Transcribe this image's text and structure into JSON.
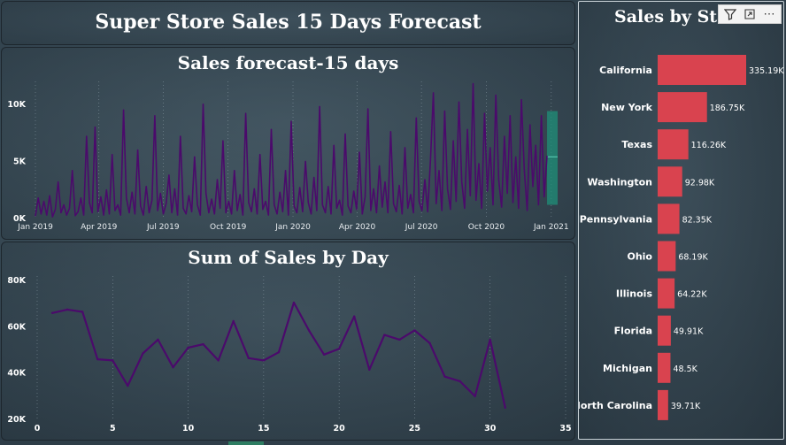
{
  "dashboard": {
    "title": "Super Store Sales 15 Days Forecast"
  },
  "colors": {
    "line": "#4b0a6b",
    "forecast_band": "#1f8f78",
    "bar": "#d9434f"
  },
  "toolbar": {
    "icons": [
      "filter-icon",
      "focus-mode-icon",
      "more-options-icon"
    ],
    "more_label": "⋯"
  },
  "chart_data": [
    {
      "type": "line",
      "title": "Sales forecast-15 days",
      "x_ticks": [
        "Jan 2019",
        "Apr 2019",
        "Jul 2019",
        "Oct 2019",
        "Jan 2020",
        "Apr 2020",
        "Jul 2020",
        "Oct 2020",
        "Jan 2021"
      ],
      "y_ticks": [
        "0K",
        "5K",
        "10K"
      ],
      "ylim": [
        0,
        12000
      ],
      "x_range": [
        "2019-01-01",
        "2021-01-10"
      ],
      "series": [
        {
          "values": [
            200,
            1800,
            400,
            1500,
            300,
            2000,
            150,
            800,
            3200,
            500,
            1200,
            300,
            900,
            4200,
            250,
            600,
            1800,
            300,
            7200,
            1400,
            500,
            8000,
            600,
            1900,
            300,
            2500,
            400,
            5600,
            700,
            1200,
            300,
            9500,
            1800,
            500,
            2300,
            400,
            6000,
            1100,
            300,
            2800,
            500,
            1600,
            9000,
            700,
            2200,
            400,
            1300,
            3800,
            500,
            2600,
            300,
            7200,
            900,
            400,
            2000,
            600,
            5400,
            1200,
            300,
            10000,
            2200,
            500,
            1700,
            400,
            3400,
            900,
            6800,
            500,
            1500,
            400,
            4200,
            700,
            2100,
            300,
            9200,
            1400,
            600,
            2600,
            400,
            5600,
            800,
            1500,
            300,
            7800,
            1200,
            400,
            2300,
            600,
            4200,
            300,
            8500,
            1100,
            500,
            2700,
            600,
            5000,
            1400,
            400,
            3600,
            700,
            9800,
            1200,
            500,
            2800,
            400,
            6400,
            900,
            1600,
            300,
            7400,
            1100,
            500,
            2400,
            800,
            5800,
            400,
            1900,
            9600,
            700,
            2600,
            500,
            4600,
            1000,
            3200,
            500,
            7600,
            1300,
            600,
            2900,
            400,
            6200,
            900,
            2100,
            500,
            8800,
            1500,
            700,
            3400,
            600,
            5200,
            11000,
            1300,
            4200,
            700,
            9400,
            2600,
            800,
            6800,
            1500,
            10200,
            3200,
            900,
            7800,
            2000,
            11800,
            1600,
            4800,
            900,
            9200,
            2400,
            6200,
            1200,
            10800,
            3400,
            1000,
            7200,
            2200,
            9000,
            1400,
            5400,
            900,
            10400,
            4300,
            700,
            8200,
            2800,
            6400,
            1200,
            9000,
            1900,
            5500
          ]
        },
        {
          "name": "",
          "values": []
        }
      ],
      "forecast_band": {
        "start": "2020-12-26",
        "end": "2021-01-10",
        "lower": 1200,
        "upper": 9400,
        "mid": 5400
      }
    },
    {
      "type": "line",
      "title": "Sum of Sales by Day",
      "x": [
        1,
        2,
        3,
        4,
        5,
        6,
        7,
        8,
        9,
        10,
        11,
        12,
        13,
        14,
        15,
        16,
        17,
        18,
        19,
        20,
        21,
        22,
        23,
        24,
        25,
        26,
        27,
        28,
        29,
        30,
        31
      ],
      "values": [
        66000,
        67500,
        66500,
        46000,
        45500,
        34500,
        48500,
        54500,
        42500,
        51000,
        52500,
        45500,
        62500,
        46500,
        45500,
        49000,
        70500,
        58500,
        48000,
        50500,
        64500,
        41500,
        56500,
        54500,
        58500,
        53000,
        38500,
        36500,
        30000,
        54500,
        25000
      ],
      "x_ticks": [
        "0",
        "5",
        "10",
        "15",
        "20",
        "25",
        "30",
        "35"
      ],
      "xlim": [
        0,
        35
      ],
      "y_ticks": [
        "20K",
        "40K",
        "60K",
        "80K"
      ],
      "ylim": [
        20000,
        82000
      ]
    },
    {
      "type": "bar",
      "title": "Sales by State",
      "categories": [
        "California",
        "New York",
        "Texas",
        "Washington",
        "Pennsylvania",
        "Ohio",
        "Illinois",
        "Florida",
        "Michigan",
        "North Carolina"
      ],
      "values": [
        335190,
        186750,
        116260,
        92980,
        82350,
        68190,
        64220,
        49910,
        48500,
        39710
      ],
      "labels": [
        "335.19K",
        "186.75K",
        "116.26K",
        "92.98K",
        "82.35K",
        "68.19K",
        "64.22K",
        "49.91K",
        "48.5K",
        "39.71K"
      ]
    }
  ]
}
